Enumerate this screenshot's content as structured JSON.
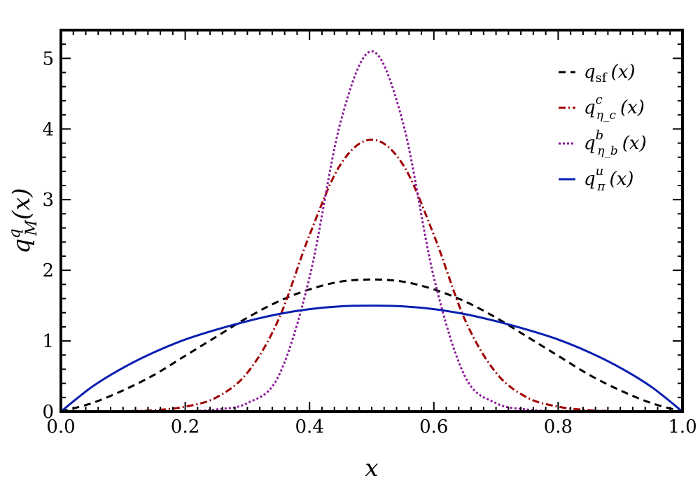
{
  "chart_data": {
    "type": "line",
    "xlabel": "x",
    "ylabel_main": "q",
    "ylabel_sup": "q",
    "ylabel_sub": "M",
    "ylabel_arg": "(x)",
    "xlim": [
      0,
      1
    ],
    "ylim": [
      0,
      5.4
    ],
    "x_ticks": [
      0.0,
      0.2,
      0.4,
      0.6,
      0.8,
      1.0
    ],
    "x_tick_labels": [
      "0.0",
      "0.2",
      "0.4",
      "0.6",
      "0.8",
      "1.0"
    ],
    "y_ticks": [
      0,
      1,
      2,
      3,
      4,
      5
    ],
    "y_tick_labels": [
      "0",
      "1",
      "2",
      "3",
      "4",
      "5"
    ],
    "grid": false,
    "legend_position": "top-right",
    "x": [
      0.0,
      0.05,
      0.1,
      0.15,
      0.2,
      0.25,
      0.3,
      0.35,
      0.4,
      0.45,
      0.5,
      0.55,
      0.6,
      0.65,
      0.7,
      0.75,
      0.8,
      0.85,
      0.9,
      0.95,
      1.0
    ],
    "series": [
      {
        "key": "sf",
        "legend_main": "q",
        "legend_sub": "sf",
        "legend_sup": "",
        "legend_arg": "(x)",
        "color": "#000000",
        "dash": "dashed",
        "values": [
          0.0,
          0.12,
          0.3,
          0.52,
          0.79,
          1.06,
          1.33,
          1.56,
          1.73,
          1.84,
          1.87,
          1.84,
          1.73,
          1.56,
          1.33,
          1.06,
          0.79,
          0.52,
          0.3,
          0.12,
          0.0
        ]
      },
      {
        "key": "etac",
        "legend_main": "q",
        "legend_sub": "η_c",
        "legend_sup": "c",
        "legend_arg": "(x)",
        "color": "#a00000",
        "dash": "dashdot",
        "values": [
          0.0,
          0.001,
          0.005,
          0.02,
          0.07,
          0.2,
          0.55,
          1.3,
          2.5,
          3.5,
          3.85,
          3.5,
          2.5,
          1.3,
          0.55,
          0.2,
          0.07,
          0.02,
          0.005,
          0.001,
          0.0
        ]
      },
      {
        "key": "etab",
        "legend_main": "q",
        "legend_sub": "η_b",
        "legend_sup": "b",
        "legend_arg": "(x)",
        "color": "#8b1a9a",
        "dash": "dotted",
        "values": [
          0.0,
          0.0,
          0.0,
          0.0,
          0.005,
          0.03,
          0.12,
          0.5,
          1.9,
          4.1,
          5.1,
          4.1,
          1.9,
          0.5,
          0.12,
          0.03,
          0.005,
          0.0,
          0.0,
          0.0,
          0.0
        ]
      },
      {
        "key": "pi",
        "legend_main": "q",
        "legend_sub": "π",
        "legend_sup": "u",
        "legend_arg": "(x)",
        "color": "#0a1fb0",
        "dash": "solid",
        "values": [
          0.0,
          0.35,
          0.62,
          0.84,
          1.02,
          1.16,
          1.28,
          1.38,
          1.45,
          1.49,
          1.5,
          1.49,
          1.45,
          1.38,
          1.28,
          1.16,
          1.02,
          0.84,
          0.62,
          0.35,
          0.0
        ]
      }
    ]
  }
}
